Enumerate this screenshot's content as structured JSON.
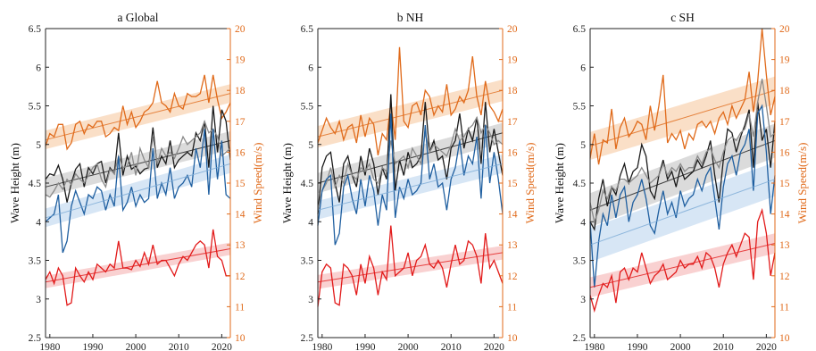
{
  "colors": {
    "wind": "#E06A1A",
    "wind_band": "#F8D4B4",
    "swh_max": "#1A1A1A",
    "swh_max_band": "#CFCFCF",
    "swh_mean_gray": "#8A8A8A",
    "swh_sig": "#1F5FA0",
    "swh_sig_trend": "#7AAAD6",
    "swh_sig_band": "#C9DEF1",
    "swh_min": "#E21A1A",
    "swh_min_band": "#F7C2C2"
  },
  "chart_data": [
    {
      "type": "line",
      "title": "a Global",
      "ylabel": "Wave Height (m)",
      "ylabel_right": "Wind Speed(m/s)",
      "ylim": [
        2.5,
        6.5
      ],
      "ylim_right": [
        10,
        20
      ],
      "xlim": [
        1979,
        2022
      ],
      "xticks": [
        1980,
        1990,
        2000,
        2010,
        2020
      ],
      "yticks": [
        2.5,
        3,
        3.5,
        4,
        4.5,
        5,
        5.5,
        6,
        6.5
      ],
      "yticks_right": [
        10,
        11,
        12,
        13,
        14,
        15,
        16,
        17,
        18,
        19,
        20
      ],
      "start_year": 1979,
      "series": [
        {
          "axis": "right",
          "color_key": "wind",
          "band_key": "wind_band",
          "trend": [
            16.4,
            17.9
          ],
          "band": 0.3,
          "values": [
            16.2,
            16.6,
            16.5,
            16.9,
            16.9,
            16.1,
            16.3,
            16.9,
            17.0,
            16.6,
            16.9,
            16.8,
            17.0,
            17.0,
            16.5,
            16.6,
            16.8,
            16.7,
            17.5,
            16.9,
            17.3,
            16.8,
            17.0,
            17.3,
            17.4,
            17.6,
            18.3,
            17.6,
            17.5,
            17.3,
            17.9,
            17.5,
            17.4,
            17.9,
            17.8,
            17.8,
            17.9,
            18.5,
            17.6,
            18.5,
            17.7,
            17.1,
            17.3,
            17.6
          ]
        },
        {
          "axis": "left",
          "color_key": "swh_max",
          "band_key": "swh_max_band",
          "trend": [
            4.45,
            5.05
          ],
          "band": 0.12,
          "values": [
            4.55,
            4.62,
            4.6,
            4.73,
            4.55,
            4.25,
            4.5,
            4.68,
            4.75,
            4.45,
            4.7,
            4.62,
            4.75,
            4.78,
            4.5,
            4.7,
            4.62,
            5.15,
            4.6,
            4.85,
            4.68,
            4.72,
            4.62,
            4.68,
            4.7,
            5.22,
            4.7,
            4.85,
            4.75,
            5.05,
            4.7,
            4.8,
            4.85,
            4.9,
            4.85,
            5.15,
            5.05,
            5.3,
            4.7,
            5.5,
            4.9,
            5.45,
            5.3,
            4.8
          ]
        },
        {
          "axis": "left",
          "color_key": "swh_mean_gray",
          "band_key": null,
          "trend": null,
          "band": 0,
          "values": [
            4.35,
            4.32,
            4.4,
            4.5,
            4.42,
            4.55,
            4.48,
            4.62,
            4.55,
            4.5,
            4.6,
            4.7,
            4.75,
            4.55,
            4.45,
            4.68,
            4.62,
            4.85,
            4.7,
            4.72,
            4.9,
            4.6,
            4.95,
            4.8,
            4.7,
            5.1,
            4.75,
            4.95,
            4.85,
            4.9,
            4.82,
            4.95,
            5.1,
            5.0,
            5.05,
            5.1,
            5.15,
            5.3,
            5.15,
            5.2,
            5.1,
            4.85,
            4.9,
            4.95
          ]
        },
        {
          "axis": "left",
          "color_key": "swh_sig",
          "band_key": "swh_sig_band",
          "trend_color_key": "swh_sig_trend",
          "trend": [
            4.05,
            4.75
          ],
          "band": 0.12,
          "values": [
            4.0,
            4.05,
            4.1,
            4.35,
            3.6,
            3.75,
            4.2,
            4.4,
            4.25,
            4.1,
            4.35,
            4.3,
            4.45,
            4.4,
            4.15,
            4.35,
            4.2,
            4.85,
            4.15,
            4.25,
            4.45,
            4.2,
            4.35,
            4.25,
            4.3,
            4.95,
            4.3,
            4.5,
            4.35,
            4.7,
            4.3,
            4.45,
            4.5,
            4.6,
            4.45,
            4.95,
            4.7,
            5.2,
            4.35,
            5.2,
            4.55,
            5.05,
            4.35,
            4.3
          ]
        },
        {
          "axis": "left",
          "color_key": "swh_min",
          "band_key": "swh_min_band",
          "trend": [
            3.22,
            3.65
          ],
          "band": 0.08,
          "values": [
            3.25,
            3.35,
            3.2,
            3.4,
            3.3,
            2.92,
            2.95,
            3.4,
            3.3,
            3.22,
            3.35,
            3.25,
            3.45,
            3.4,
            3.35,
            3.45,
            3.4,
            3.75,
            3.4,
            3.4,
            3.38,
            3.5,
            3.42,
            3.6,
            3.45,
            3.7,
            3.45,
            3.5,
            3.5,
            3.4,
            3.3,
            3.45,
            3.55,
            3.5,
            3.6,
            3.7,
            3.75,
            3.7,
            3.4,
            3.9,
            3.55,
            3.5,
            3.3,
            3.3
          ]
        }
      ]
    },
    {
      "type": "line",
      "title": "b NH",
      "ylabel": "Wave Height (m)",
      "ylabel_right": "Wind Speed(m/s)",
      "ylim": [
        2.5,
        6.5
      ],
      "ylim_right": [
        10,
        20
      ],
      "xlim": [
        1979,
        2022
      ],
      "xticks": [
        1980,
        1990,
        2000,
        2010,
        2020
      ],
      "yticks": [
        2.5,
        3,
        3.5,
        4,
        4.5,
        5,
        5.5,
        6,
        6.5
      ],
      "yticks_right": [
        10,
        11,
        12,
        13,
        14,
        15,
        16,
        17,
        18,
        19,
        20
      ],
      "start_year": 1979,
      "series": [
        {
          "axis": "right",
          "color_key": "wind",
          "band_key": "wind_band",
          "trend": [
            16.5,
            18.0
          ],
          "band": 0.35,
          "values": [
            16.3,
            16.7,
            17.1,
            16.8,
            16.6,
            17.0,
            16.4,
            16.8,
            16.9,
            16.3,
            17.2,
            16.5,
            17.1,
            16.9,
            15.9,
            16.6,
            16.4,
            17.6,
            16.4,
            19.4,
            17.0,
            16.8,
            17.5,
            17.6,
            17.2,
            18.0,
            17.8,
            17.2,
            17.5,
            17.3,
            18.2,
            17.2,
            17.4,
            17.8,
            17.6,
            18.0,
            19.1,
            17.8,
            17.2,
            18.3,
            17.5,
            17.3,
            17.0,
            17.4
          ]
        },
        {
          "axis": "left",
          "color_key": "swh_max",
          "band_key": "swh_max_band",
          "trend": [
            4.5,
            5.15
          ],
          "band": 0.13,
          "values": [
            4.1,
            4.7,
            4.85,
            4.9,
            4.5,
            4.25,
            4.75,
            4.85,
            4.6,
            4.45,
            4.85,
            4.6,
            4.95,
            4.75,
            4.35,
            4.7,
            4.55,
            5.65,
            4.4,
            4.8,
            4.6,
            4.9,
            4.7,
            4.75,
            4.85,
            5.55,
            4.9,
            5.05,
            4.8,
            4.85,
            4.55,
            4.95,
            5.05,
            5.4,
            4.95,
            5.2,
            5.05,
            5.35,
            4.75,
            5.55,
            4.9,
            5.2,
            4.9,
            4.6
          ]
        },
        {
          "axis": "left",
          "color_key": "swh_mean_gray",
          "band_key": null,
          "trend": null,
          "band": 0,
          "values": [
            4.15,
            4.4,
            4.5,
            4.7,
            4.45,
            4.6,
            4.5,
            4.75,
            4.6,
            4.55,
            4.7,
            4.65,
            4.75,
            4.55,
            4.5,
            4.7,
            4.65,
            5.05,
            4.75,
            4.8,
            4.85,
            4.7,
            4.95,
            4.85,
            4.75,
            5.15,
            4.9,
            5.0,
            4.95,
            4.9,
            4.85,
            5.0,
            5.2,
            5.05,
            5.1,
            5.2,
            5.25,
            5.35,
            5.15,
            5.25,
            5.15,
            5.0,
            5.05,
            5.0
          ]
        },
        {
          "axis": "left",
          "color_key": "swh_sig",
          "band_key": "swh_sig_band",
          "trend": [
            4.15,
            4.75
          ],
          "trend_color_key": "swh_sig_trend",
          "band": 0.12,
          "values": [
            3.95,
            4.4,
            4.55,
            4.6,
            3.7,
            3.85,
            4.45,
            4.6,
            4.3,
            4.1,
            4.55,
            4.2,
            4.6,
            4.4,
            3.95,
            4.35,
            4.15,
            5.4,
            4.05,
            4.45,
            4.3,
            4.55,
            4.35,
            4.4,
            4.5,
            5.25,
            4.55,
            4.75,
            4.45,
            4.5,
            4.15,
            4.55,
            4.7,
            5.05,
            4.6,
            4.85,
            4.75,
            5.1,
            4.3,
            5.25,
            4.5,
            4.9,
            4.55,
            4.1
          ]
        },
        {
          "axis": "left",
          "color_key": "swh_min",
          "band_key": "swh_min_band",
          "trend": [
            3.22,
            3.6
          ],
          "band": 0.09,
          "values": [
            2.9,
            3.35,
            3.45,
            3.4,
            2.95,
            2.92,
            3.45,
            3.4,
            3.3,
            3.05,
            3.45,
            3.2,
            3.55,
            3.4,
            3.05,
            3.35,
            3.25,
            3.95,
            3.3,
            3.35,
            3.4,
            3.6,
            3.3,
            3.5,
            3.55,
            3.7,
            3.45,
            3.4,
            3.5,
            3.4,
            3.15,
            3.45,
            3.7,
            3.45,
            3.5,
            3.75,
            3.7,
            3.55,
            3.2,
            3.85,
            3.4,
            3.5,
            3.35,
            3.2
          ]
        }
      ]
    },
    {
      "type": "line",
      "title": "c SH",
      "ylabel": "Wave Height (m)",
      "ylabel_right": "Wind Speed(m/s)",
      "ylim": [
        2.5,
        6.5
      ],
      "ylim_right": [
        10,
        20
      ],
      "xlim": [
        1979,
        2022
      ],
      "xticks": [
        1980,
        1990,
        2000,
        2010,
        2020
      ],
      "yticks": [
        2.5,
        3,
        3.5,
        4,
        4.5,
        5,
        5.5,
        6,
        6.5
      ],
      "yticks_right": [
        10,
        11,
        12,
        13,
        14,
        15,
        16,
        17,
        18,
        19,
        20
      ],
      "start_year": 1979,
      "series": [
        {
          "axis": "right",
          "color_key": "wind",
          "band_key": "wind_band",
          "trend": [
            16.2,
            18.0
          ],
          "band": 0.45,
          "values": [
            15.8,
            16.6,
            15.6,
            16.4,
            16.3,
            17.4,
            16.1,
            16.8,
            17.1,
            16.5,
            16.7,
            17.0,
            16.9,
            16.4,
            17.5,
            16.7,
            17.5,
            18.5,
            16.3,
            16.6,
            16.4,
            16.7,
            16.1,
            16.6,
            16.4,
            16.9,
            17.0,
            16.8,
            17.0,
            16.6,
            17.1,
            17.3,
            16.9,
            17.5,
            17.1,
            17.4,
            17.7,
            18.6,
            17.3,
            18.3,
            20.0,
            18.5,
            17.2,
            17.8
          ]
        },
        {
          "axis": "left",
          "color_key": "swh_max",
          "band_key": "swh_max_band",
          "trend": [
            4.15,
            5.05
          ],
          "band": 0.22,
          "values": [
            4.0,
            3.9,
            4.3,
            4.55,
            4.2,
            4.45,
            4.35,
            4.6,
            4.75,
            4.5,
            4.65,
            4.7,
            5.0,
            4.85,
            4.4,
            4.3,
            4.6,
            4.8,
            4.55,
            4.65,
            4.45,
            4.7,
            4.55,
            4.6,
            4.65,
            4.8,
            4.7,
            4.85,
            5.05,
            4.6,
            4.25,
            4.8,
            5.2,
            5.15,
            4.9,
            5.1,
            5.25,
            5.45,
            4.7,
            5.55,
            5.05,
            5.2,
            4.7,
            5.3
          ]
        },
        {
          "axis": "left",
          "color_key": "swh_mean_gray",
          "band_key": null,
          "trend": null,
          "band": 0,
          "values": [
            4.25,
            4.0,
            4.15,
            4.4,
            4.3,
            4.45,
            4.4,
            4.55,
            4.55,
            4.5,
            4.55,
            4.6,
            4.7,
            4.6,
            4.5,
            4.55,
            4.6,
            4.75,
            4.6,
            4.7,
            4.65,
            4.75,
            4.65,
            4.7,
            4.7,
            4.85,
            4.75,
            4.9,
            4.95,
            4.8,
            4.7,
            4.9,
            5.05,
            5.1,
            5.05,
            5.15,
            5.2,
            5.4,
            5.1,
            5.55,
            5.85,
            5.5,
            5.1,
            5.15
          ]
        },
        {
          "axis": "left",
          "color_key": "swh_sig",
          "band_key": "swh_sig_band",
          "trend": [
            3.7,
            4.55
          ],
          "trend_color_key": "swh_sig_trend",
          "band": 0.22,
          "values": [
            4.0,
            3.15,
            3.75,
            4.1,
            3.95,
            4.35,
            4.05,
            4.35,
            4.45,
            4.0,
            4.25,
            4.35,
            4.55,
            4.3,
            3.95,
            3.85,
            4.15,
            4.4,
            4.1,
            4.25,
            4.05,
            4.4,
            4.2,
            4.3,
            4.35,
            4.55,
            4.4,
            4.6,
            4.7,
            4.3,
            3.9,
            4.45,
            4.75,
            4.85,
            4.6,
            4.9,
            5.0,
            5.2,
            4.4,
            5.4,
            5.5,
            4.9,
            4.1,
            4.6
          ]
        },
        {
          "axis": "left",
          "color_key": "swh_min",
          "band_key": "swh_min_band",
          "trend": [
            3.15,
            3.72
          ],
          "band": 0.13,
          "values": [
            3.05,
            2.85,
            3.05,
            3.2,
            3.15,
            3.3,
            2.95,
            3.35,
            3.4,
            3.25,
            3.4,
            3.35,
            3.6,
            3.4,
            3.2,
            3.3,
            3.35,
            3.45,
            3.25,
            3.3,
            3.35,
            3.5,
            3.4,
            3.45,
            3.45,
            3.55,
            3.4,
            3.6,
            3.55,
            3.4,
            3.15,
            3.45,
            3.6,
            3.7,
            3.55,
            3.7,
            3.85,
            3.8,
            3.25,
            4.0,
            4.15,
            3.85,
            3.3,
            3.6
          ]
        }
      ]
    }
  ]
}
